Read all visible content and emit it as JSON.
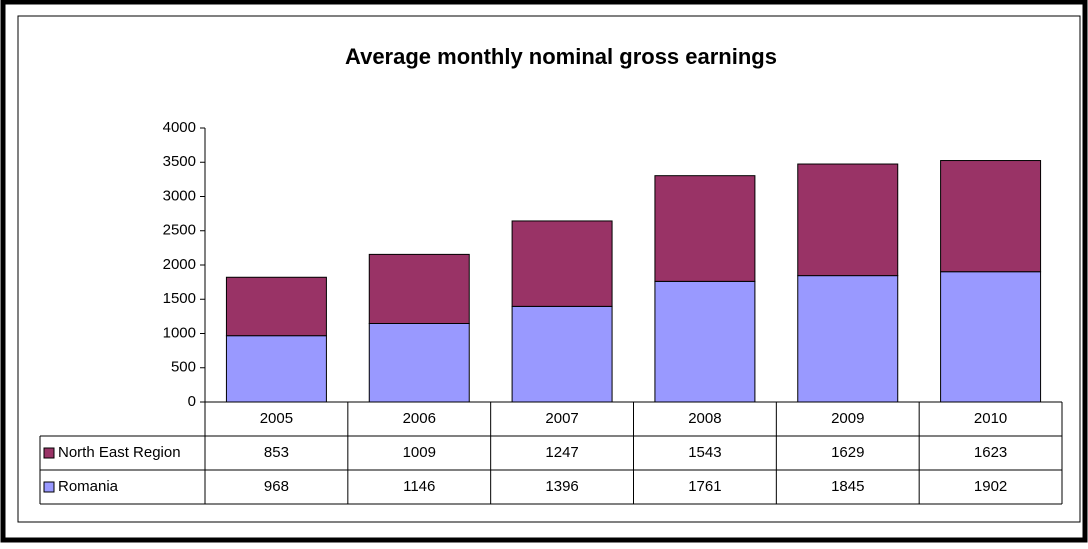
{
  "chart_data": {
    "type": "stacked_bar",
    "title": "Average monthly nominal gross earnings",
    "categories": [
      "2005",
      "2006",
      "2007",
      "2008",
      "2009",
      "2010"
    ],
    "series": [
      {
        "name": "North East Region",
        "color": "#993366",
        "values": [
          853,
          1009,
          1247,
          1543,
          1629,
          1623
        ]
      },
      {
        "name": "Romania",
        "color": "#9999ff",
        "values": [
          968,
          1146,
          1396,
          1761,
          1845,
          1902
        ]
      }
    ],
    "ylim": [
      0,
      4000
    ],
    "yticks": [
      0,
      500,
      1000,
      1500,
      2000,
      2500,
      3000,
      3500,
      4000
    ],
    "grid": false
  }
}
